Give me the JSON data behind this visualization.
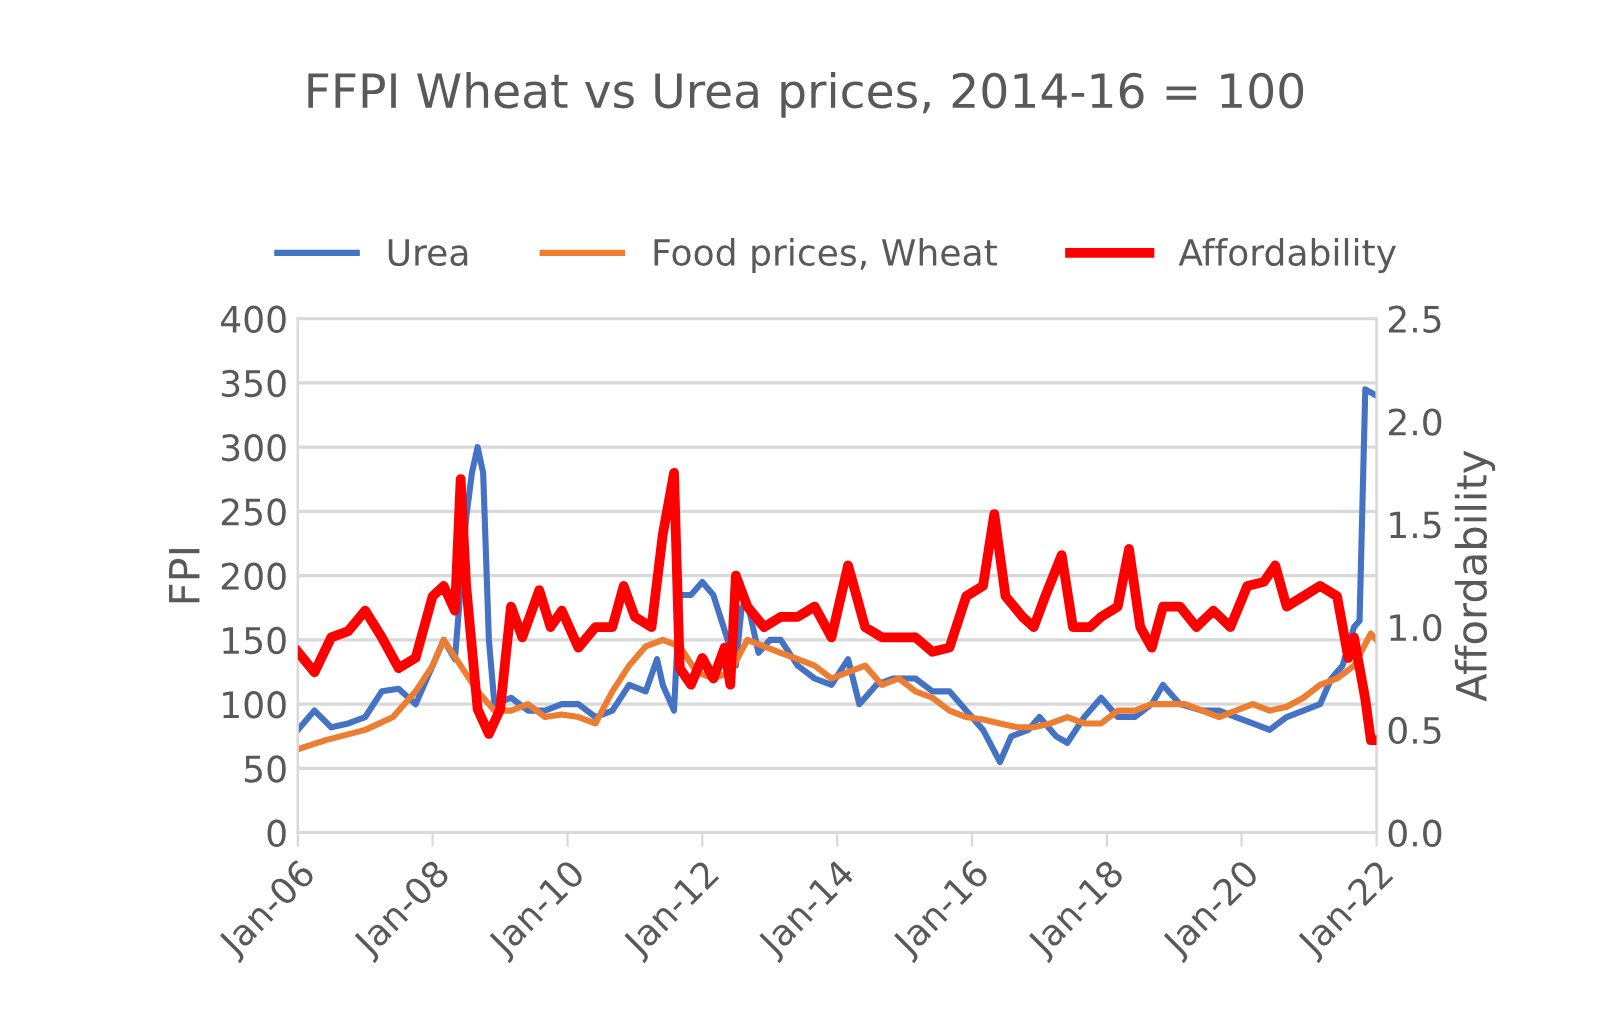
{
  "chart_data": {
    "type": "line",
    "title": "FFPI Wheat vs Urea prices, 2014-16 = 100",
    "ylabel": "FPI",
    "y2label": "Affordability",
    "xlim": [
      "2006-01",
      "2022-01"
    ],
    "xticks": [
      {
        "value": "2006-01",
        "label": "Jan-06"
      },
      {
        "value": "2008-01",
        "label": "Jan-08"
      },
      {
        "value": "2010-01",
        "label": "Jan-10"
      },
      {
        "value": "2012-01",
        "label": "Jan-12"
      },
      {
        "value": "2014-01",
        "label": "Jan-14"
      },
      {
        "value": "2016-01",
        "label": "Jan-16"
      },
      {
        "value": "2018-01",
        "label": "Jan-18"
      },
      {
        "value": "2020-01",
        "label": "Jan-20"
      },
      {
        "value": "2022-01",
        "label": "Jan-22"
      }
    ],
    "ylim": [
      0,
      400
    ],
    "yticks": [
      0,
      50,
      100,
      150,
      200,
      250,
      300,
      350,
      400
    ],
    "y2lim": [
      0,
      2.5
    ],
    "y2ticks": [
      {
        "value": 0,
        "label": "0.0"
      },
      {
        "value": 0.5,
        "label": "0.5"
      },
      {
        "value": 1,
        "label": "1.0"
      },
      {
        "value": 1.5,
        "label": "1.5"
      },
      {
        "value": 2,
        "label": "2.0"
      },
      {
        "value": 2.5,
        "label": "2.5"
      }
    ],
    "grid": "y",
    "legend": "top",
    "marker": "none",
    "line_style": "solid",
    "series": [
      {
        "name": "Urea",
        "color": "#4472c4",
        "x": [
          "2006-01",
          "2006-04",
          "2006-07",
          "2006-10",
          "2007-01",
          "2007-04",
          "2007-07",
          "2007-10",
          "2008-01",
          "2008-03",
          "2008-05",
          "2008-07",
          "2008-08",
          "2008-09",
          "2008-10",
          "2008-11",
          "2008-12",
          "2009-03",
          "2009-06",
          "2009-09",
          "2009-12",
          "2010-03",
          "2010-06",
          "2010-09",
          "2010-12",
          "2011-03",
          "2011-05",
          "2011-06",
          "2011-08",
          "2011-09",
          "2011-11",
          "2012-01",
          "2012-03",
          "2012-07",
          "2012-08",
          "2012-09",
          "2012-11",
          "2013-01",
          "2013-03",
          "2013-06",
          "2013-09",
          "2013-12",
          "2014-03",
          "2014-05",
          "2014-08",
          "2014-11",
          "2015-03",
          "2015-06",
          "2015-09",
          "2015-12",
          "2016-03",
          "2016-06",
          "2016-08",
          "2016-11",
          "2017-01",
          "2017-04",
          "2017-06",
          "2017-09",
          "2017-12",
          "2018-03",
          "2018-06",
          "2018-09",
          "2018-11",
          "2019-02",
          "2019-06",
          "2019-09",
          "2019-12",
          "2020-03",
          "2020-06",
          "2020-09",
          "2020-12",
          "2021-03",
          "2021-05",
          "2021-07",
          "2021-09",
          "2021-10",
          "2021-11",
          "2022-01"
        ],
        "values": [
          80,
          95,
          82,
          85,
          90,
          110,
          112,
          100,
          130,
          150,
          135,
          245,
          280,
          300,
          280,
          150,
          100,
          105,
          95,
          95,
          100,
          100,
          90,
          95,
          115,
          110,
          135,
          115,
          95,
          185,
          185,
          195,
          185,
          130,
          175,
          180,
          140,
          150,
          150,
          130,
          120,
          115,
          135,
          100,
          115,
          120,
          120,
          110,
          110,
          95,
          80,
          55,
          75,
          80,
          90,
          75,
          70,
          90,
          105,
          90,
          90,
          100,
          115,
          100,
          95,
          95,
          90,
          85,
          80,
          90,
          95,
          100,
          120,
          130,
          160,
          165,
          345,
          340
        ]
      },
      {
        "name": "Food prices, Wheat",
        "color": "#ed7d31",
        "x": [
          "2006-01",
          "2006-06",
          "2007-01",
          "2007-06",
          "2007-10",
          "2008-01",
          "2008-03",
          "2008-06",
          "2008-09",
          "2008-12",
          "2009-03",
          "2009-06",
          "2009-09",
          "2009-12",
          "2010-03",
          "2010-06",
          "2010-09",
          "2010-12",
          "2011-03",
          "2011-06",
          "2011-09",
          "2011-12",
          "2012-03",
          "2012-06",
          "2012-09",
          "2012-12",
          "2013-03",
          "2013-06",
          "2013-09",
          "2013-12",
          "2014-03",
          "2014-06",
          "2014-09",
          "2014-12",
          "2015-03",
          "2015-06",
          "2015-09",
          "2015-12",
          "2016-03",
          "2016-06",
          "2016-09",
          "2016-12",
          "2017-03",
          "2017-06",
          "2017-09",
          "2017-12",
          "2018-03",
          "2018-06",
          "2018-09",
          "2018-12",
          "2019-03",
          "2019-06",
          "2019-09",
          "2019-12",
          "2020-03",
          "2020-06",
          "2020-09",
          "2020-12",
          "2021-03",
          "2021-06",
          "2021-09",
          "2021-12",
          "2022-01"
        ],
        "values": [
          65,
          72,
          80,
          90,
          110,
          130,
          150,
          130,
          110,
          95,
          95,
          100,
          90,
          92,
          90,
          85,
          110,
          130,
          145,
          150,
          145,
          125,
          120,
          125,
          150,
          145,
          140,
          135,
          130,
          120,
          125,
          130,
          115,
          120,
          110,
          105,
          95,
          90,
          88,
          85,
          82,
          82,
          85,
          90,
          85,
          85,
          95,
          95,
          100,
          100,
          100,
          95,
          90,
          95,
          100,
          95,
          98,
          105,
          115,
          120,
          130,
          155,
          150
        ]
      },
      {
        "name": "Affordability",
        "color": "#ff0000",
        "axis": "y2",
        "x": [
          "2006-01",
          "2006-04",
          "2006-07",
          "2006-10",
          "2007-01",
          "2007-04",
          "2007-07",
          "2007-10",
          "2008-01",
          "2008-03",
          "2008-05",
          "2008-06",
          "2008-07",
          "2008-09",
          "2008-11",
          "2009-01",
          "2009-03",
          "2009-05",
          "2009-08",
          "2009-10",
          "2009-12",
          "2010-03",
          "2010-06",
          "2010-09",
          "2010-11",
          "2011-01",
          "2011-04",
          "2011-06",
          "2011-08",
          "2011-09",
          "2011-11",
          "2012-01",
          "2012-03",
          "2012-05",
          "2012-06",
          "2012-07",
          "2012-09",
          "2012-12",
          "2013-03",
          "2013-06",
          "2013-09",
          "2013-12",
          "2014-03",
          "2014-06",
          "2014-09",
          "2014-12",
          "2015-03",
          "2015-06",
          "2015-09",
          "2015-12",
          "2016-03",
          "2016-05",
          "2016-07",
          "2016-10",
          "2016-12",
          "2017-02",
          "2017-05",
          "2017-07",
          "2017-10",
          "2017-12",
          "2018-03",
          "2018-05",
          "2018-07",
          "2018-09",
          "2018-11",
          "2019-02",
          "2019-05",
          "2019-08",
          "2019-11",
          "2020-02",
          "2020-05",
          "2020-07",
          "2020-09",
          "2020-12",
          "2021-03",
          "2021-06",
          "2021-08",
          "2021-09",
          "2021-11",
          "2021-12",
          "2022-01"
        ],
        "values": [
          0.88,
          0.78,
          0.95,
          0.98,
          1.08,
          0.95,
          0.8,
          0.85,
          1.15,
          1.2,
          1.08,
          1.72,
          1.2,
          0.6,
          0.48,
          0.6,
          1.1,
          0.95,
          1.18,
          1.0,
          1.08,
          0.9,
          1.0,
          1.0,
          1.2,
          1.05,
          1.0,
          1.45,
          1.75,
          0.8,
          0.72,
          0.85,
          0.75,
          0.9,
          0.72,
          1.25,
          1.1,
          1.0,
          1.05,
          1.05,
          1.1,
          0.95,
          1.3,
          1.0,
          0.95,
          0.95,
          0.95,
          0.88,
          0.9,
          1.15,
          1.2,
          1.55,
          1.15,
          1.05,
          1.0,
          1.15,
          1.35,
          1.0,
          1.0,
          1.05,
          1.1,
          1.38,
          1.0,
          0.9,
          1.1,
          1.1,
          1.0,
          1.08,
          1.0,
          1.2,
          1.22,
          1.3,
          1.1,
          1.15,
          1.2,
          1.15,
          0.85,
          0.95,
          0.65,
          0.45,
          0.45
        ]
      }
    ]
  }
}
